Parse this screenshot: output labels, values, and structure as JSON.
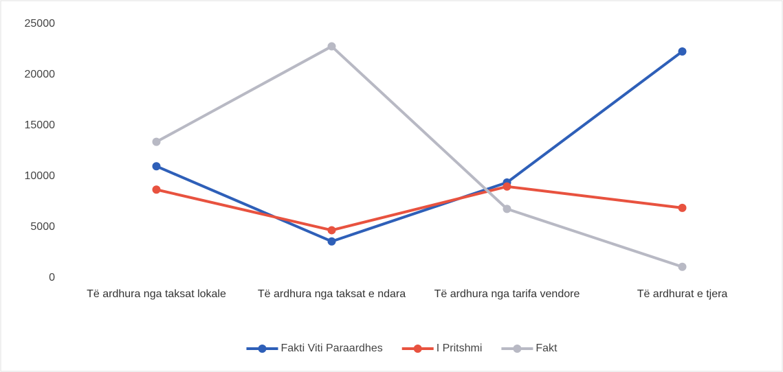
{
  "chart_data": {
    "type": "line",
    "categories": [
      "Të ardhura nga taksat lokale",
      "Të ardhura nga taksat e ndara",
      "Të ardhura nga tarifa vendore",
      "Të ardhurat e tjera"
    ],
    "series": [
      {
        "name": "Fakti Viti Paraardhes",
        "color": "#2e5fb8",
        "values": [
          11000,
          3600,
          9400,
          22300
        ]
      },
      {
        "name": "I Pritshmi",
        "color": "#e8523f",
        "values": [
          8700,
          4700,
          9000,
          6900
        ]
      },
      {
        "name": "Fakt",
        "color": "#b8b9c4",
        "values": [
          13400,
          22800,
          6800,
          1100
        ]
      }
    ],
    "ylim": [
      0,
      25000
    ],
    "yticks": [
      0,
      5000,
      10000,
      15000,
      20000,
      25000
    ],
    "grid": false,
    "legend": "bottom"
  }
}
